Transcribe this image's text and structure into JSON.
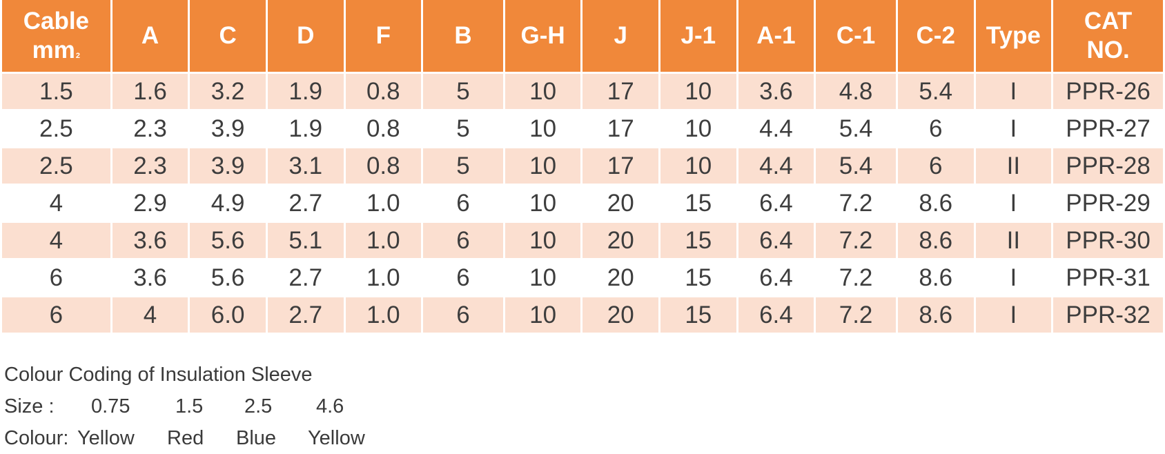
{
  "table": {
    "header": {
      "cable_line1": "Cable",
      "cable_line2": "mm",
      "cable_sup": "2",
      "columns": [
        "A",
        "C",
        "D",
        "F",
        "B",
        "G-H",
        "J",
        "J-1",
        "A-1",
        "C-1",
        "C-2",
        "Type"
      ],
      "cat_line1": "CAT",
      "cat_line2": "NO."
    },
    "rows": [
      [
        "1.5",
        "1.6",
        "3.2",
        "1.9",
        "0.8",
        "5",
        "10",
        "17",
        "10",
        "3.6",
        "4.8",
        "5.4",
        "I",
        "PPR-26"
      ],
      [
        "2.5",
        "2.3",
        "3.9",
        "1.9",
        "0.8",
        "5",
        "10",
        "17",
        "10",
        "4.4",
        "5.4",
        "6",
        "I",
        "PPR-27"
      ],
      [
        "2.5",
        "2.3",
        "3.9",
        "3.1",
        "0.8",
        "5",
        "10",
        "17",
        "10",
        "4.4",
        "5.4",
        "6",
        "II",
        "PPR-28"
      ],
      [
        "4",
        "2.9",
        "4.9",
        "2.7",
        "1.0",
        "6",
        "10",
        "20",
        "15",
        "6.4",
        "7.2",
        "8.6",
        "I",
        "PPR-29"
      ],
      [
        "4",
        "3.6",
        "5.6",
        "5.1",
        "1.0",
        "6",
        "10",
        "20",
        "15",
        "6.4",
        "7.2",
        "8.6",
        "II",
        "PPR-30"
      ],
      [
        "6",
        "3.6",
        "5.6",
        "2.7",
        "1.0",
        "6",
        "10",
        "20",
        "15",
        "6.4",
        "7.2",
        "8.6",
        "I",
        "PPR-31"
      ],
      [
        "6",
        "4",
        "6.0",
        "2.7",
        "1.0",
        "6",
        "10",
        "20",
        "15",
        "6.4",
        "7.2",
        "8.6",
        "I",
        "PPR-32"
      ]
    ]
  },
  "legend": {
    "title": "Colour Coding of Insulation Sleeve",
    "size_label": "Size :",
    "sizes": [
      "0.75",
      "1.5",
      "2.5",
      "4.6"
    ],
    "colour_label": "Colour:",
    "colours": [
      "Yellow",
      "Red",
      "Blue",
      "Yellow"
    ]
  },
  "colors": {
    "header_bg": "#f0883a",
    "shaded_row_bg": "#fbdfd0",
    "text": "#3d3d3d"
  }
}
